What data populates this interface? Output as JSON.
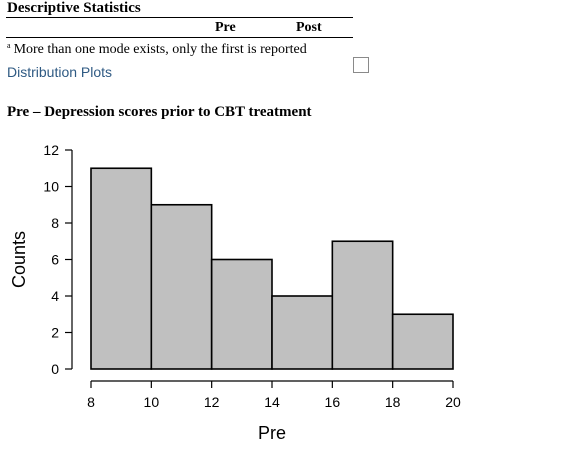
{
  "descriptive_statistics": {
    "title": "Descriptive Statistics",
    "columns": [
      "Pre",
      "Post"
    ],
    "footnote_marker": "a",
    "footnote": "More than one mode exists, only the first is reported"
  },
  "distribution_plots": {
    "link_label": "Distribution Plots",
    "checked": false
  },
  "plot": {
    "title": "Pre – Depression scores prior to CBT treatment"
  },
  "chart_data": {
    "type": "bar",
    "subtype": "histogram",
    "title": "",
    "xlabel": "Pre",
    "ylabel": "Counts",
    "bin_edges": [
      8,
      10,
      12,
      14,
      16,
      18,
      20
    ],
    "values": [
      11,
      9,
      6,
      4,
      7,
      3
    ],
    "xlim": [
      8,
      20
    ],
    "ylim": [
      0,
      12
    ],
    "x_ticks": [
      8,
      10,
      12,
      14,
      16,
      18,
      20
    ],
    "y_ticks": [
      0,
      2,
      4,
      6,
      8,
      10,
      12
    ],
    "bar_color": "#c0c0c0",
    "grid": false
  }
}
